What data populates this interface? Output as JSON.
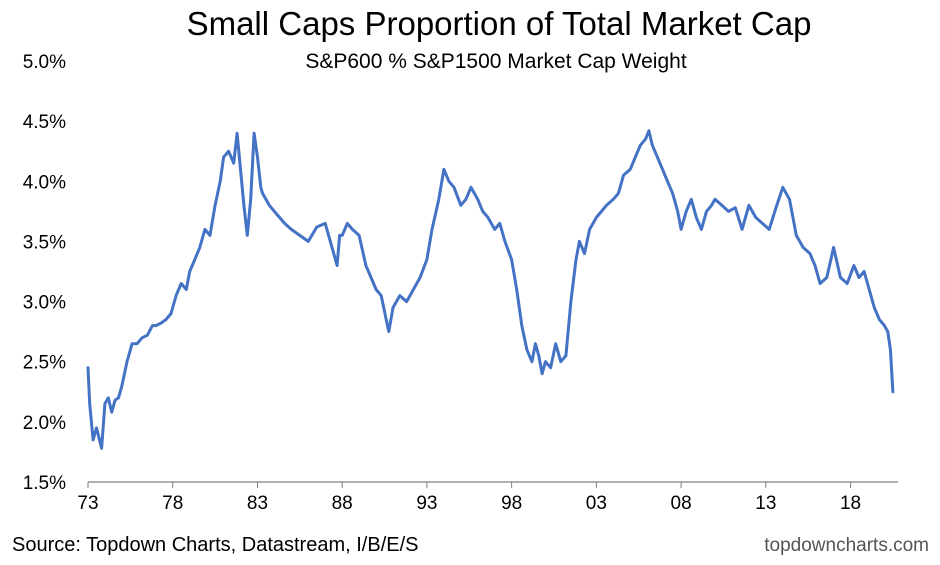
{
  "chart_data": {
    "type": "line",
    "title": "Small Caps Proportion of Total Market Cap",
    "subtitle": "S&P600 % S&P1500 Market Cap Weight",
    "xlabel": "",
    "ylabel": "",
    "x_ticks": [
      "73",
      "78",
      "83",
      "88",
      "93",
      "98",
      "03",
      "08",
      "13",
      "18"
    ],
    "x_tick_years": [
      1973,
      1978,
      1983,
      1988,
      1993,
      1998,
      2003,
      2008,
      2013,
      2018
    ],
    "xlim": [
      1973,
      2020.8
    ],
    "y_ticks": [
      "1.5%",
      "2.0%",
      "2.5%",
      "3.0%",
      "3.5%",
      "4.0%",
      "4.5%",
      "5.0%"
    ],
    "y_tick_values": [
      1.5,
      2.0,
      2.5,
      3.0,
      3.5,
      4.0,
      4.5,
      5.0
    ],
    "ylim": [
      1.5,
      5.0
    ],
    "grid": false,
    "series": [
      {
        "name": "S&P600 % S&P1500 Market Cap Weight",
        "color": "#4472C4",
        "x": [
          1973.0,
          1973.1,
          1973.3,
          1973.5,
          1973.8,
          1974.0,
          1974.2,
          1974.4,
          1974.6,
          1974.8,
          1975.0,
          1975.3,
          1975.6,
          1975.9,
          1976.2,
          1976.5,
          1976.8,
          1977.0,
          1977.3,
          1977.6,
          1977.9,
          1978.2,
          1978.5,
          1978.8,
          1979.0,
          1979.3,
          1979.6,
          1979.9,
          1980.2,
          1980.5,
          1980.8,
          1981.0,
          1981.3,
          1981.6,
          1981.8,
          1982.0,
          1982.2,
          1982.4,
          1982.6,
          1982.8,
          1983.0,
          1983.2,
          1983.3,
          1983.5,
          1983.7,
          1984.0,
          1984.3,
          1984.6,
          1985.0,
          1985.5,
          1986.0,
          1986.5,
          1987.0,
          1987.4,
          1987.7,
          1987.85,
          1988.0,
          1988.3,
          1988.6,
          1989.0,
          1989.4,
          1989.7,
          1990.0,
          1990.3,
          1990.6,
          1990.75,
          1991.0,
          1991.4,
          1991.8,
          1992.2,
          1992.6,
          1993.0,
          1993.3,
          1993.7,
          1994.0,
          1994.3,
          1994.6,
          1995.0,
          1995.3,
          1995.6,
          1996.0,
          1996.3,
          1996.6,
          1997.0,
          1997.3,
          1997.6,
          1998.0,
          1998.3,
          1998.6,
          1998.9,
          1999.2,
          1999.4,
          1999.6,
          1999.8,
          2000.0,
          2000.3,
          2000.6,
          2000.9,
          2001.2,
          2001.5,
          2001.8,
          2002.0,
          2002.3,
          2002.6,
          2003.0,
          2003.3,
          2003.6,
          2004.0,
          2004.3,
          2004.6,
          2005.0,
          2005.3,
          2005.6,
          2005.9,
          2006.1,
          2006.3,
          2006.6,
          2006.9,
          2007.2,
          2007.5,
          2007.8,
          2008.0,
          2008.3,
          2008.6,
          2008.9,
          2009.2,
          2009.5,
          2009.8,
          2010.0,
          2010.4,
          2010.8,
          2011.2,
          2011.6,
          2012.0,
          2012.4,
          2012.8,
          2013.2,
          2013.6,
          2014.0,
          2014.4,
          2014.8,
          2015.2,
          2015.6,
          2015.9,
          2016.2,
          2016.6,
          2017.0,
          2017.4,
          2017.8,
          2018.2,
          2018.5,
          2018.8,
          2019.1,
          2019.4,
          2019.7,
          2020.0,
          2020.2,
          2020.35,
          2020.5
        ],
        "values": [
          2.45,
          2.15,
          1.85,
          1.95,
          1.78,
          2.15,
          2.2,
          2.08,
          2.18,
          2.2,
          2.3,
          2.5,
          2.65,
          2.65,
          2.7,
          2.72,
          2.8,
          2.8,
          2.82,
          2.85,
          2.9,
          3.05,
          3.15,
          3.1,
          3.25,
          3.35,
          3.45,
          3.6,
          3.55,
          3.8,
          4.0,
          4.2,
          4.25,
          4.15,
          4.4,
          4.1,
          3.8,
          3.55,
          3.85,
          4.4,
          4.2,
          3.95,
          3.9,
          3.85,
          3.8,
          3.75,
          3.7,
          3.65,
          3.6,
          3.55,
          3.5,
          3.62,
          3.65,
          3.45,
          3.3,
          3.55,
          3.55,
          3.65,
          3.6,
          3.55,
          3.3,
          3.2,
          3.1,
          3.05,
          2.85,
          2.75,
          2.95,
          3.05,
          3.0,
          3.1,
          3.2,
          3.35,
          3.6,
          3.85,
          4.1,
          4.0,
          3.95,
          3.8,
          3.85,
          3.95,
          3.85,
          3.75,
          3.7,
          3.6,
          3.65,
          3.5,
          3.35,
          3.1,
          2.8,
          2.6,
          2.5,
          2.65,
          2.55,
          2.4,
          2.5,
          2.45,
          2.65,
          2.5,
          2.55,
          3.0,
          3.35,
          3.5,
          3.4,
          3.6,
          3.7,
          3.75,
          3.8,
          3.85,
          3.9,
          4.05,
          4.1,
          4.2,
          4.3,
          4.35,
          4.42,
          4.3,
          4.2,
          4.1,
          4.0,
          3.9,
          3.75,
          3.6,
          3.75,
          3.85,
          3.7,
          3.6,
          3.75,
          3.8,
          3.85,
          3.8,
          3.75,
          3.78,
          3.6,
          3.8,
          3.7,
          3.65,
          3.6,
          3.78,
          3.95,
          3.85,
          3.55,
          3.45,
          3.4,
          3.3,
          3.15,
          3.2,
          3.45,
          3.2,
          3.15,
          3.3,
          3.2,
          3.25,
          3.1,
          2.95,
          2.85,
          2.8,
          2.75,
          2.6,
          2.25
        ]
      }
    ],
    "footer": {
      "source": "Source: Topdown Charts, Datastream, I/B/E/S",
      "watermark": "topdowncharts.com"
    }
  }
}
